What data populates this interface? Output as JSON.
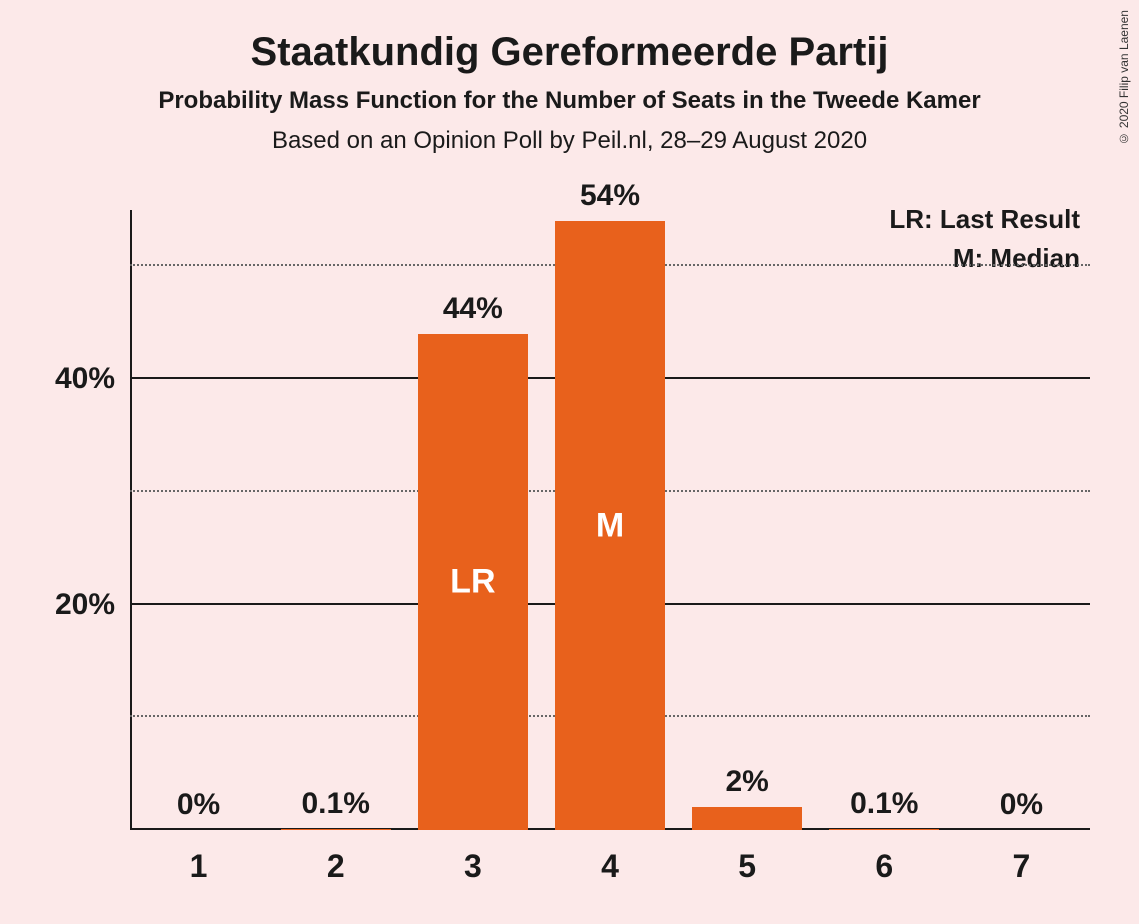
{
  "title": "Staatkundig Gereformeerde Partij",
  "subtitle": "Probability Mass Function for the Number of Seats in the Tweede Kamer",
  "subtitle2": "Based on an Opinion Poll by Peil.nl, 28–29 August 2020",
  "copyright": "© 2020 Filip van Laenen",
  "legend": {
    "lr": "LR: Last Result",
    "m": "M: Median"
  },
  "chart": {
    "type": "bar",
    "background_color": "#fce9e9",
    "bar_color": "#e8611c",
    "axis_color": "#1a1a1a",
    "grid_dotted_color": "#666666",
    "text_color": "#1a1a1a",
    "bar_inner_text_color": "#ffffff",
    "y_max": 55,
    "y_gridlines": [
      {
        "value": 50,
        "style": "dotted",
        "label": ""
      },
      {
        "value": 40,
        "style": "solid",
        "label": "40%"
      },
      {
        "value": 30,
        "style": "dotted",
        "label": ""
      },
      {
        "value": 20,
        "style": "solid",
        "label": "20%"
      },
      {
        "value": 10,
        "style": "dotted",
        "label": ""
      }
    ],
    "categories": [
      "1",
      "2",
      "3",
      "4",
      "5",
      "6",
      "7"
    ],
    "values": [
      0,
      0.1,
      44,
      54,
      2,
      0.1,
      0
    ],
    "value_labels": [
      "0%",
      "0.1%",
      "44%",
      "54%",
      "2%",
      "0.1%",
      "0%"
    ],
    "inner_labels": [
      "",
      "",
      "LR",
      "M",
      "",
      "",
      ""
    ],
    "title_fontsize": 40,
    "subtitle_fontsize": 24,
    "axis_label_fontsize": 30,
    "bar_label_fontsize": 30,
    "inner_label_fontsize": 34,
    "x_label_fontsize": 32,
    "legend_fontsize": 26
  }
}
